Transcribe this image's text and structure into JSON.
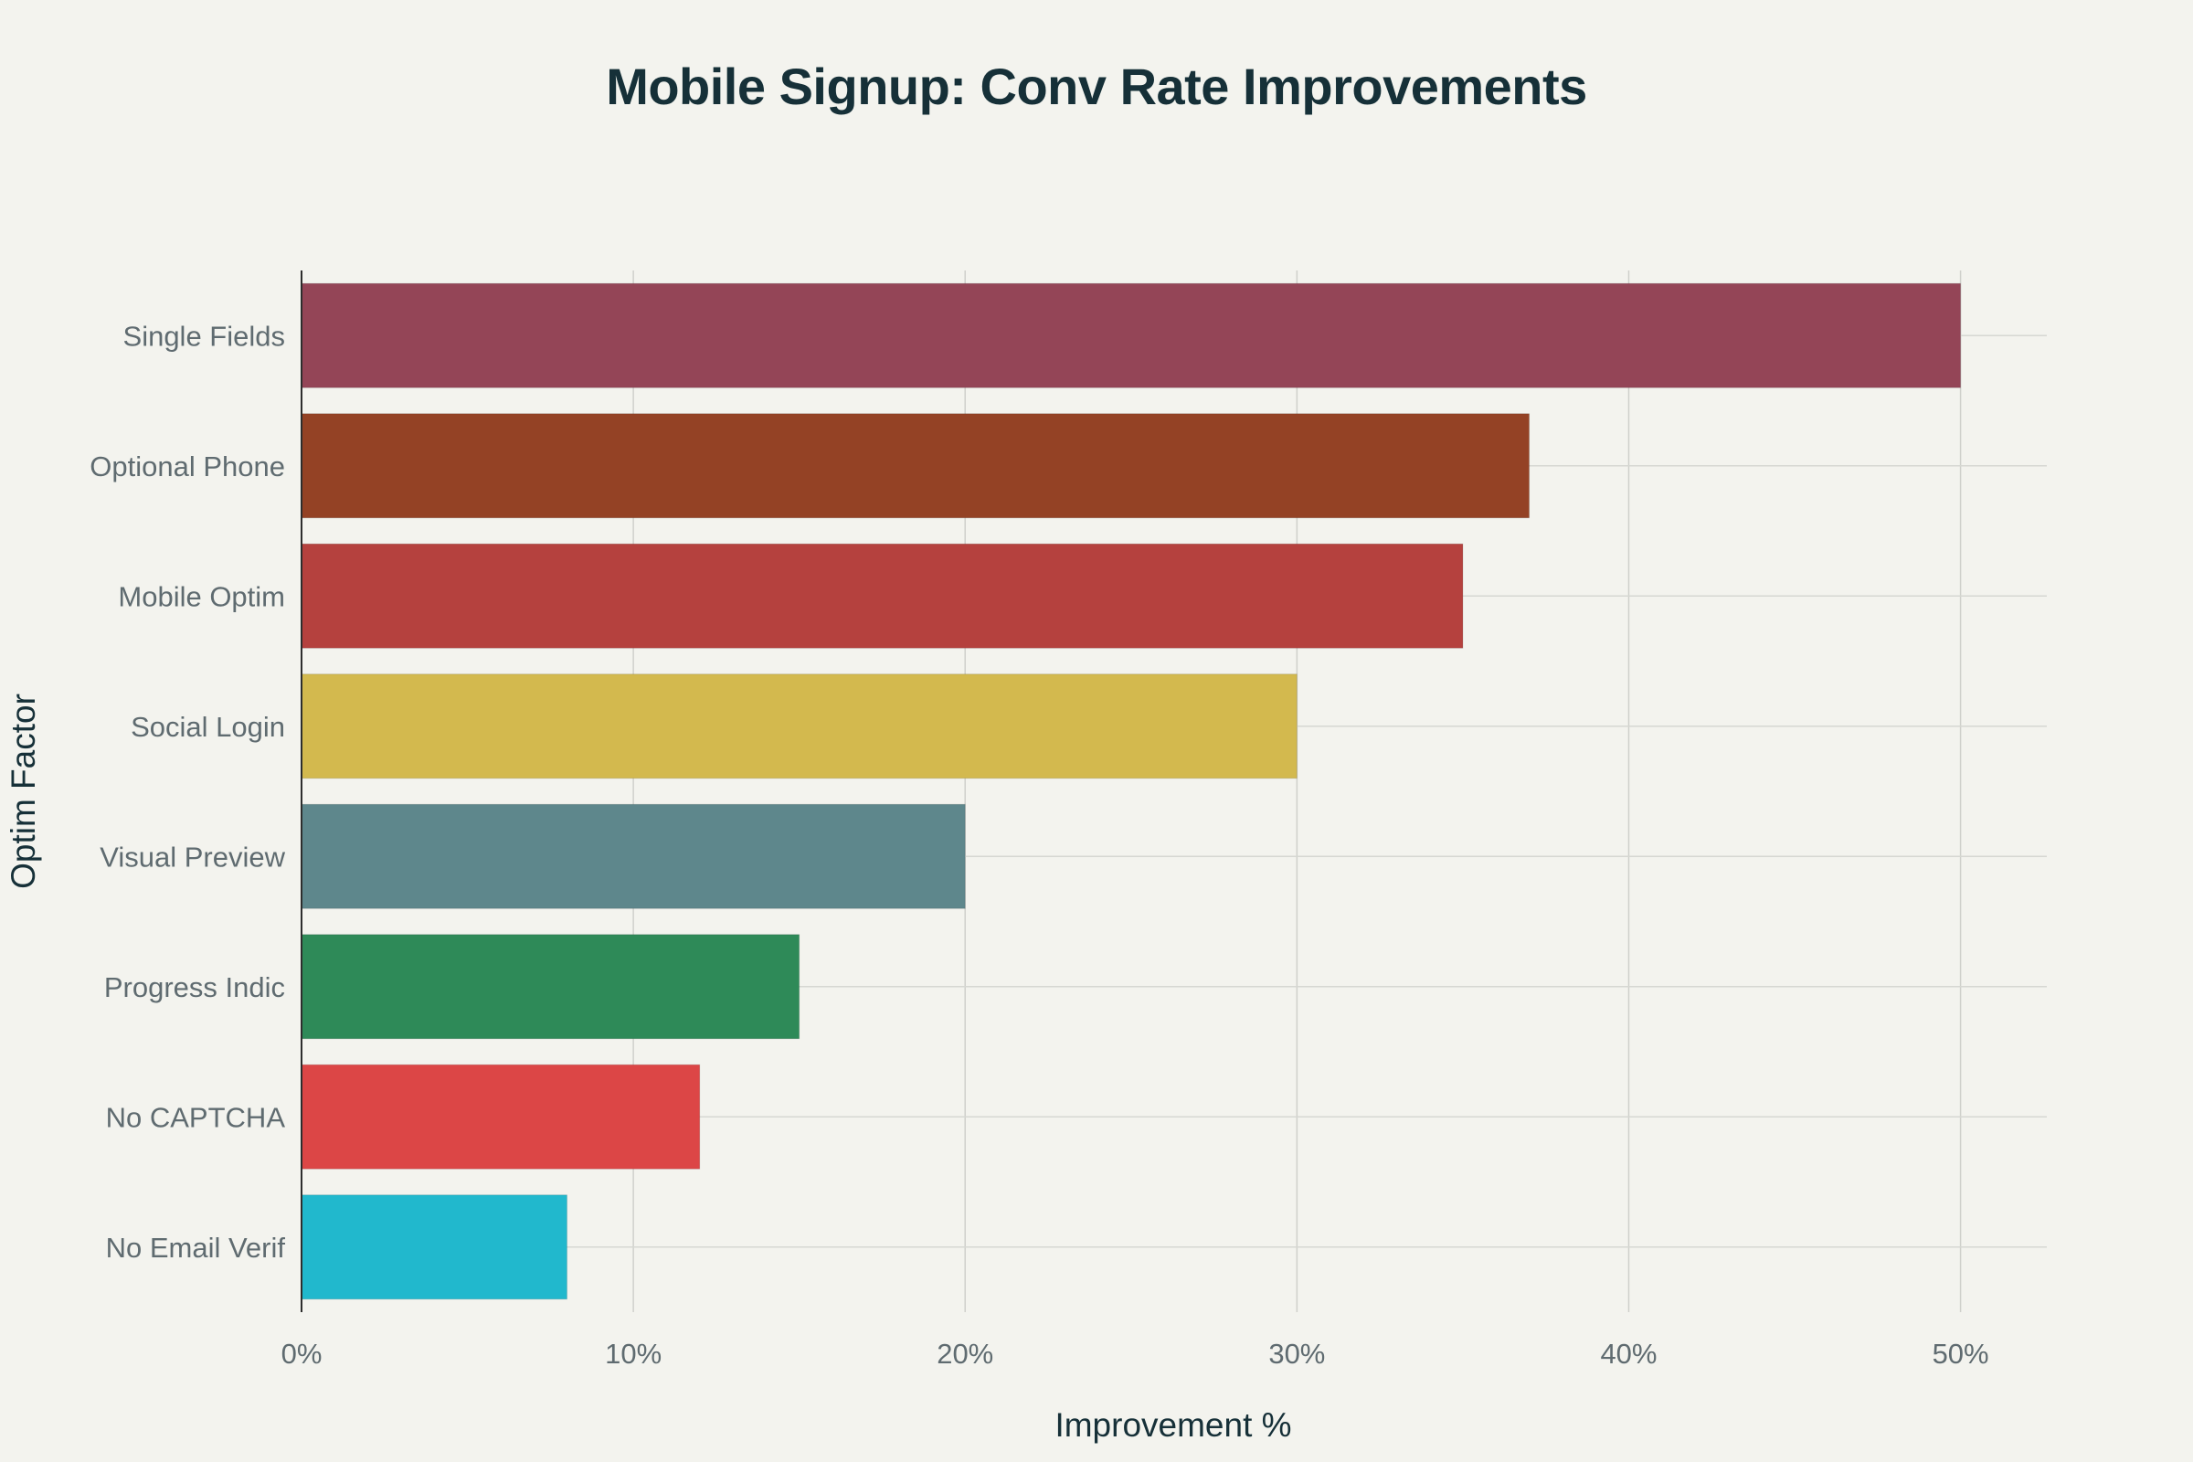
{
  "chart_data": {
    "type": "bar",
    "orientation": "horizontal",
    "title": "Mobile Signup: Conv Rate Improvements",
    "xlabel": "Improvement %",
    "ylabel": "Optim Factor",
    "categories": [
      "Single Fields",
      "Optional Phone",
      "Mobile Optim",
      "Social Login",
      "Visual Preview",
      "Progress Indic",
      "No CAPTCHA",
      "No Email Verif"
    ],
    "values": [
      50,
      37,
      35,
      30,
      20,
      15,
      12,
      8
    ],
    "colors": [
      "#944557",
      "#944225",
      "#b5413e",
      "#d3b94e",
      "#5e878c",
      "#2e8a58",
      "#dc4646",
      "#21b8cd"
    ],
    "xlim": [
      0,
      52.6
    ],
    "xticks": [
      0,
      10,
      20,
      30,
      40,
      50
    ],
    "xtick_labels": [
      "0%",
      "10%",
      "20%",
      "30%",
      "40%",
      "50%"
    ],
    "grid": true,
    "legend": false
  }
}
